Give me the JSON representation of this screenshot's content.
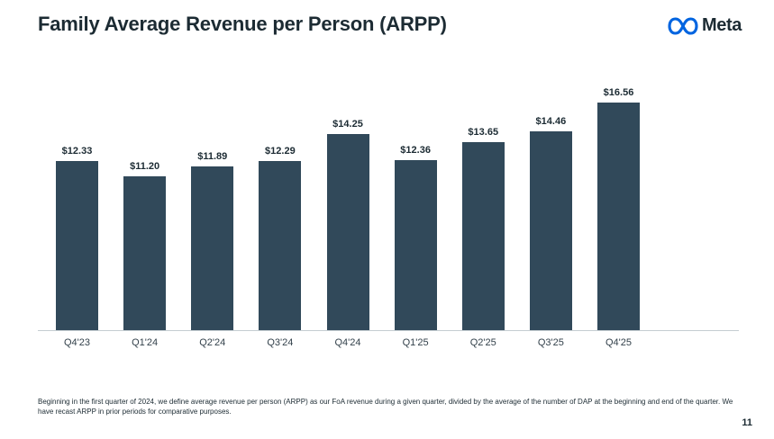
{
  "header": {
    "title": "Family Average Revenue per Person (ARPP)",
    "brand": "Meta"
  },
  "chart_data": {
    "type": "bar",
    "title": "Family Average Revenue per Person (ARPP)",
    "categories": [
      "Q4'23",
      "Q1'24",
      "Q2'24",
      "Q3'24",
      "Q4'24",
      "Q1'25",
      "Q2'25",
      "Q3'25",
      "Q4'25"
    ],
    "values": [
      12.33,
      11.2,
      11.89,
      12.29,
      14.25,
      12.36,
      13.65,
      14.46,
      16.56
    ],
    "value_labels": [
      "$12.33",
      "$11.20",
      "$11.89",
      "$12.29",
      "$14.25",
      "$12.36",
      "$13.65",
      "$14.46",
      "$16.56"
    ],
    "xlabel": "",
    "ylabel": "",
    "ylim": [
      0,
      18
    ],
    "grid": false,
    "legend": false,
    "bar_color": "#31495a",
    "baseline_color": "#c5cdd2",
    "label_color": "#1c2b33"
  },
  "brand_colors": {
    "meta_blue": "#0064e0",
    "text_dark": "#1c2b33"
  },
  "footnote": {
    "text": "Beginning in the first quarter of 2024, we define average revenue per person (ARPP) as our FoA revenue during a given quarter, divided by the average of the number of DAP at the beginning and end of the quarter. We have recast ARPP in prior periods for comparative purposes."
  },
  "page_number": "11"
}
